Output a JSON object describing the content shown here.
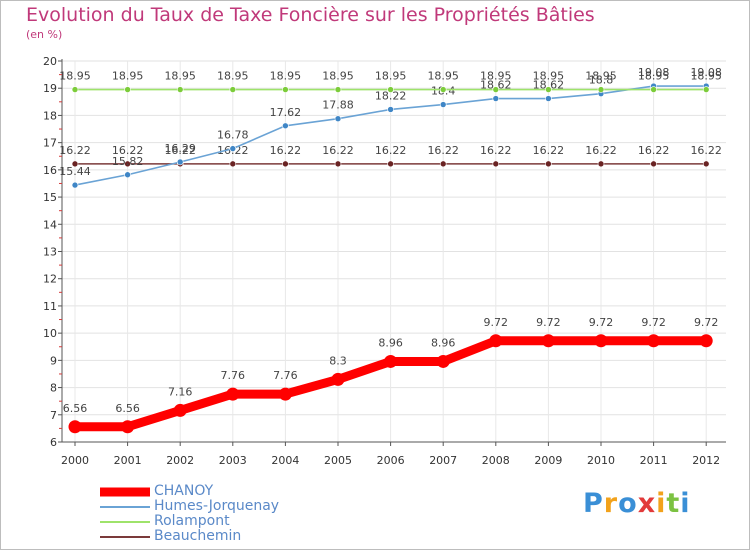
{
  "chart_data": {
    "type": "line",
    "title": "Evolution du Taux de Taxe Foncière sur les Propriétés Bâties",
    "ylabel": "(en %)",
    "xlabel": "",
    "categories": [
      "2000",
      "2001",
      "2002",
      "2003",
      "2004",
      "2005",
      "2006",
      "2007",
      "2008",
      "2009",
      "2010",
      "2011",
      "2012"
    ],
    "ylim": [
      6,
      20
    ],
    "yticks": [
      "6",
      "7",
      "8",
      "9",
      "10",
      "11",
      "12",
      "13",
      "14",
      "15",
      "16",
      "17",
      "18",
      "19",
      "20"
    ],
    "series": [
      {
        "name": "Beauchemin",
        "color": "#7b3a3a",
        "dot": "#6a2323",
        "values": [
          16.22,
          16.22,
          16.22,
          16.22,
          16.22,
          16.22,
          16.22,
          16.22,
          16.22,
          16.22,
          16.22,
          16.22,
          16.22
        ],
        "labels": [
          "16.22",
          "16.22",
          "16.22",
          "16.22",
          "16.22",
          "16.22",
          "16.22",
          "16.22",
          "16.22",
          "16.22",
          "16.22",
          "16.22",
          "16.22"
        ]
      },
      {
        "name": "Humes-Jorquenay",
        "color": "#6aa3d5",
        "dot": "#3f86c6",
        "values": [
          15.44,
          15.82,
          16.29,
          16.78,
          17.62,
          17.88,
          18.22,
          18.4,
          18.62,
          18.62,
          18.8,
          19.08,
          19.08
        ],
        "labels": [
          "15.44",
          "15.82",
          "16.29",
          "16.78",
          "17.62",
          "17.88",
          "18.22",
          "18.4",
          "18.62",
          "18.62",
          "18.8",
          "19.08",
          "19.08"
        ]
      },
      {
        "name": "Rolampont",
        "color": "#9ee36a",
        "dot": "#7ccc3a",
        "values": [
          18.95,
          18.95,
          18.95,
          18.95,
          18.95,
          18.95,
          18.95,
          18.95,
          18.95,
          18.95,
          18.95,
          18.95,
          18.95
        ],
        "labels": [
          "18.95",
          "18.95",
          "18.95",
          "18.95",
          "18.95",
          "18.95",
          "18.95",
          "18.95",
          "18.95",
          "18.95",
          "18.95",
          "18.95",
          "18.95"
        ]
      },
      {
        "name": "CHANOY",
        "color": "#ff0000",
        "dot": "#ff0000",
        "values": [
          6.56,
          6.56,
          7.16,
          7.76,
          7.76,
          8.3,
          8.96,
          8.96,
          9.72,
          9.72,
          9.72,
          9.72,
          9.72
        ],
        "labels": [
          "6.56",
          "6.56",
          "7.16",
          "7.76",
          "7.76",
          "8.3",
          "8.96",
          "8.96",
          "9.72",
          "9.72",
          "9.72",
          "9.72",
          "9.72"
        ]
      }
    ]
  },
  "legend": {
    "items": [
      {
        "label": "CHANOY",
        "color": "#ff0000",
        "thick": true
      },
      {
        "label": "Humes-Jorquenay",
        "color": "#6aa3d5",
        "thick": false
      },
      {
        "label": "Rolampont",
        "color": "#9ee36a",
        "thick": false
      },
      {
        "label": "Beauchemin",
        "color": "#7b3a3a",
        "thick": false
      }
    ]
  },
  "logo": {
    "text": "Proxiti",
    "letters": [
      "P",
      "r",
      "o",
      "x",
      "i",
      "t",
      "i"
    ],
    "colors": [
      "#3a8fd6",
      "#f2a21b",
      "#3a8fd6",
      "#e23a3a",
      "#f2a21b",
      "#7cc242",
      "#3a8fd6"
    ]
  }
}
